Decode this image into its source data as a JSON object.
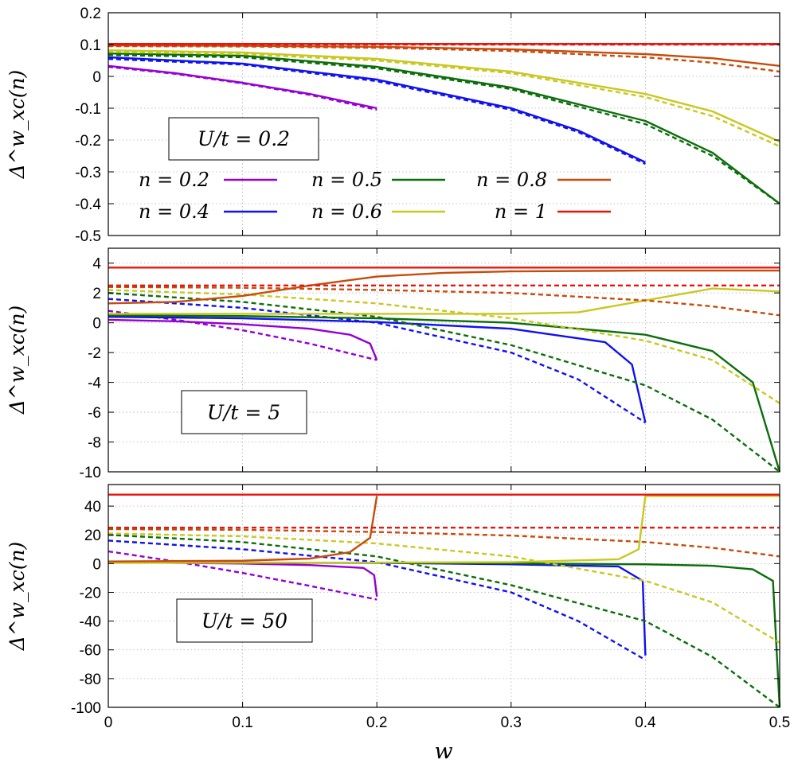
{
  "chart_data": [
    {
      "type": "line",
      "panel": "U/t = 0.2",
      "annotation": "U/t = 0.2",
      "ylabel": "Δ^w_xc(n)",
      "xlabel": "",
      "xlim": [
        0,
        0.5
      ],
      "ylim": [
        -0.5,
        0.2
      ],
      "xticks": [
        "0",
        "0.1",
        "0.2",
        "0.3",
        "0.4",
        "0.5"
      ],
      "yticks": [
        "0.2",
        "0.1",
        "0",
        "-0.1",
        "-0.2",
        "-0.3",
        "-0.4",
        "-0.5"
      ],
      "grid": true,
      "legend_position": "middle-left",
      "series": [
        {
          "name": "n = 0.2",
          "color": "#9400D3",
          "style": "solid",
          "x": [
            0,
            0.05,
            0.1,
            0.15,
            0.2
          ],
          "y": [
            0.033,
            0.01,
            -0.02,
            -0.055,
            -0.1
          ]
        },
        {
          "name": "",
          "color": "#9400D3",
          "style": "dashed",
          "x": [
            0,
            0.05,
            0.1,
            0.15,
            0.2
          ],
          "y": [
            0.03,
            0.008,
            -0.022,
            -0.058,
            -0.105
          ]
        },
        {
          "name": "n = 0.4",
          "color": "#1010F0",
          "style": "solid",
          "x": [
            0,
            0.1,
            0.2,
            0.3,
            0.35,
            0.4
          ],
          "y": [
            0.06,
            0.04,
            -0.01,
            -0.1,
            -0.17,
            -0.27
          ]
        },
        {
          "name": "",
          "color": "#1010F0",
          "style": "dashed",
          "x": [
            0,
            0.1,
            0.2,
            0.3,
            0.35,
            0.4
          ],
          "y": [
            0.055,
            0.037,
            -0.015,
            -0.105,
            -0.175,
            -0.275
          ]
        },
        {
          "name": "n = 0.5",
          "color": "#0B6E0B",
          "style": "solid",
          "x": [
            0,
            0.1,
            0.2,
            0.3,
            0.4,
            0.45,
            0.5
          ],
          "y": [
            0.072,
            0.065,
            0.03,
            -0.035,
            -0.14,
            -0.24,
            -0.4
          ]
        },
        {
          "name": "",
          "color": "#0B6E0B",
          "style": "dashed",
          "x": [
            0,
            0.1,
            0.2,
            0.3,
            0.4,
            0.45,
            0.5
          ],
          "y": [
            0.067,
            0.06,
            0.025,
            -0.04,
            -0.15,
            -0.25,
            -0.4
          ]
        },
        {
          "name": "n = 0.6",
          "color": "#C8C820",
          "style": "solid",
          "x": [
            0,
            0.1,
            0.2,
            0.3,
            0.4,
            0.45,
            0.5
          ],
          "y": [
            0.082,
            0.075,
            0.055,
            0.015,
            -0.055,
            -0.11,
            -0.205
          ]
        },
        {
          "name": "",
          "color": "#C8C820",
          "style": "dashed",
          "x": [
            0,
            0.1,
            0.2,
            0.3,
            0.4,
            0.45,
            0.5
          ],
          "y": [
            0.077,
            0.07,
            0.05,
            0.01,
            -0.065,
            -0.125,
            -0.22
          ]
        },
        {
          "name": "n = 0.8",
          "color": "#C84B0C",
          "style": "solid",
          "x": [
            0,
            0.1,
            0.2,
            0.3,
            0.4,
            0.45,
            0.5
          ],
          "y": [
            0.097,
            0.096,
            0.093,
            0.085,
            0.07,
            0.057,
            0.033
          ]
        },
        {
          "name": "",
          "color": "#C84B0C",
          "style": "dashed",
          "x": [
            0,
            0.1,
            0.2,
            0.3,
            0.4,
            0.45,
            0.5
          ],
          "y": [
            0.095,
            0.094,
            0.09,
            0.08,
            0.06,
            0.043,
            0.015
          ]
        },
        {
          "name": "n = 1",
          "color": "#E8150E",
          "style": "solid",
          "x": [
            0,
            0.5
          ],
          "y": [
            0.102,
            0.102
          ]
        },
        {
          "name": "",
          "color": "#E8150E",
          "style": "dashed",
          "x": [
            0,
            0.5
          ],
          "y": [
            0.1,
            0.1
          ]
        }
      ]
    },
    {
      "type": "line",
      "panel": "U/t = 5",
      "annotation": "U/t = 5",
      "ylabel": "Δ^w_xc(n)",
      "xlabel": "",
      "xlim": [
        0,
        0.5
      ],
      "ylim": [
        -10,
        5
      ],
      "xticks": [
        "0",
        "0.1",
        "0.2",
        "0.3",
        "0.4",
        "0.5"
      ],
      "yticks": [
        "4",
        "2",
        "0",
        "-2",
        "-4",
        "-6",
        "-8",
        "-10"
      ],
      "grid": true,
      "series": [
        {
          "name": "n = 0.2",
          "color": "#9400D3",
          "style": "solid",
          "x": [
            0,
            0.05,
            0.1,
            0.15,
            0.18,
            0.195,
            0.2
          ],
          "y": [
            0.2,
            0.1,
            -0.1,
            -0.4,
            -0.8,
            -1.4,
            -2.5
          ]
        },
        {
          "name": "",
          "color": "#9400D3",
          "style": "dashed",
          "x": [
            0,
            0.05,
            0.1,
            0.15,
            0.2
          ],
          "y": [
            0.8,
            0.2,
            -0.5,
            -1.4,
            -2.5
          ]
        },
        {
          "name": "n = 0.4",
          "color": "#1010F0",
          "style": "solid",
          "x": [
            0,
            0.1,
            0.2,
            0.3,
            0.37,
            0.39,
            0.4
          ],
          "y": [
            0.4,
            0.3,
            0.05,
            -0.4,
            -1.3,
            -2.8,
            -6.7
          ]
        },
        {
          "name": "",
          "color": "#1010F0",
          "style": "dashed",
          "x": [
            0,
            0.1,
            0.2,
            0.3,
            0.35,
            0.4
          ],
          "y": [
            1.6,
            1.0,
            0,
            -2.0,
            -3.8,
            -6.7
          ]
        },
        {
          "name": "n = 0.5",
          "color": "#0B6E0B",
          "style": "solid",
          "x": [
            0,
            0.1,
            0.2,
            0.3,
            0.4,
            0.45,
            0.48,
            0.5
          ],
          "y": [
            0.5,
            0.45,
            0.3,
            0.0,
            -0.8,
            -1.9,
            -4.0,
            -10
          ]
        },
        {
          "name": "",
          "color": "#0B6E0B",
          "style": "dashed",
          "x": [
            0,
            0.1,
            0.2,
            0.3,
            0.4,
            0.45,
            0.5
          ],
          "y": [
            2.0,
            1.4,
            0.4,
            -1.5,
            -4.2,
            -6.5,
            -10
          ]
        },
        {
          "name": "n = 0.6",
          "color": "#C8C820",
          "style": "solid",
          "x": [
            0,
            0.1,
            0.2,
            0.3,
            0.35,
            0.4,
            0.45,
            0.5
          ],
          "y": [
            0.6,
            0.6,
            0.6,
            0.6,
            0.7,
            1.5,
            2.3,
            2.1
          ]
        },
        {
          "name": "",
          "color": "#C8C820",
          "style": "dashed",
          "x": [
            0,
            0.1,
            0.2,
            0.3,
            0.4,
            0.45,
            0.5
          ],
          "y": [
            2.2,
            1.9,
            1.3,
            0.3,
            -1.2,
            -2.5,
            -5.4
          ]
        },
        {
          "name": "n = 0.8",
          "color": "#C84B0C",
          "style": "solid",
          "x": [
            0,
            0.05,
            0.1,
            0.15,
            0.2,
            0.25,
            0.3,
            0.4,
            0.5
          ],
          "y": [
            1.3,
            1.4,
            1.8,
            2.5,
            3.1,
            3.35,
            3.45,
            3.5,
            3.5
          ]
        },
        {
          "name": "",
          "color": "#C84B0C",
          "style": "dashed",
          "x": [
            0,
            0.1,
            0.2,
            0.3,
            0.4,
            0.45,
            0.5
          ],
          "y": [
            2.4,
            2.35,
            2.2,
            2.0,
            1.5,
            1.1,
            0.5
          ]
        },
        {
          "name": "n = 1",
          "color": "#E8150E",
          "style": "solid",
          "x": [
            0,
            0.5
          ],
          "y": [
            3.7,
            3.7
          ]
        },
        {
          "name": "",
          "color": "#E8150E",
          "style": "dashed",
          "x": [
            0,
            0.5
          ],
          "y": [
            2.5,
            2.5
          ]
        }
      ]
    },
    {
      "type": "line",
      "panel": "U/t = 50",
      "annotation": "U/t = 50",
      "ylabel": "Δ^w_xc(n)",
      "xlabel": "w",
      "xlim": [
        0,
        0.5
      ],
      "ylim": [
        -100,
        55
      ],
      "xticks": [
        "0",
        "0.1",
        "0.2",
        "0.3",
        "0.4",
        "0.5"
      ],
      "yticks": [
        "40",
        "20",
        "0",
        "-20",
        "-40",
        "-60",
        "-80",
        "-100"
      ],
      "grid": true,
      "series": [
        {
          "name": "n = 0.2",
          "color": "#9400D3",
          "style": "solid",
          "x": [
            0,
            0.1,
            0.15,
            0.19,
            0.198,
            0.2
          ],
          "y": [
            1.0,
            0.0,
            -1.0,
            -3.0,
            -8.0,
            -23
          ]
        },
        {
          "name": "",
          "color": "#9400D3",
          "style": "dashed",
          "x": [
            0,
            0.05,
            0.1,
            0.15,
            0.2
          ],
          "y": [
            8.5,
            1.5,
            -6.5,
            -15.5,
            -25
          ]
        },
        {
          "name": "n = 0.4",
          "color": "#1010F0",
          "style": "solid",
          "x": [
            0,
            0.2,
            0.3,
            0.38,
            0.398,
            0.4
          ],
          "y": [
            0.8,
            0.5,
            -0.5,
            -2.0,
            -12,
            -64
          ]
        },
        {
          "name": "",
          "color": "#1010F0",
          "style": "dashed",
          "x": [
            0,
            0.1,
            0.2,
            0.3,
            0.35,
            0.4
          ],
          "y": [
            16,
            10,
            1,
            -20,
            -40,
            -67
          ]
        },
        {
          "name": "n = 0.5",
          "color": "#0B6E0B",
          "style": "solid",
          "x": [
            0,
            0.2,
            0.3,
            0.4,
            0.45,
            0.48,
            0.495,
            0.5
          ],
          "y": [
            0.8,
            0.6,
            0.2,
            -0.5,
            -1.5,
            -4.0,
            -12,
            -100
          ]
        },
        {
          "name": "",
          "color": "#0B6E0B",
          "style": "dashed",
          "x": [
            0,
            0.1,
            0.2,
            0.3,
            0.4,
            0.45,
            0.5
          ],
          "y": [
            20,
            15,
            5,
            -15,
            -40,
            -65,
            -100
          ]
        },
        {
          "name": "n = 0.6",
          "color": "#C8C820",
          "style": "solid",
          "x": [
            0,
            0.2,
            0.3,
            0.38,
            0.395,
            0.4,
            0.5
          ],
          "y": [
            0.5,
            0.7,
            1.0,
            3.0,
            10,
            47,
            47
          ]
        },
        {
          "name": "",
          "color": "#C8C820",
          "style": "dashed",
          "x": [
            0,
            0.1,
            0.2,
            0.3,
            0.4,
            0.45,
            0.5
          ],
          "y": [
            21,
            19,
            14,
            5,
            -12,
            -27,
            -55
          ]
        },
        {
          "name": "n = 0.8",
          "color": "#C84B0C",
          "style": "solid",
          "x": [
            0,
            0.1,
            0.15,
            0.18,
            0.195,
            0.2
          ],
          "y": [
            1.5,
            2.0,
            3.5,
            8.0,
            18,
            47
          ]
        },
        {
          "name": "",
          "color": "#C84B0C",
          "style": "dashed",
          "x": [
            0,
            0.1,
            0.2,
            0.3,
            0.4,
            0.45,
            0.5
          ],
          "y": [
            24,
            23.5,
            22,
            19.5,
            15,
            11,
            5
          ]
        },
        {
          "name": "n = 1",
          "color": "#E8150E",
          "style": "solid",
          "x": [
            0,
            0.5
          ],
          "y": [
            48,
            48
          ]
        },
        {
          "name": "",
          "color": "#E8150E",
          "style": "dashed",
          "x": [
            0,
            0.5
          ],
          "y": [
            25,
            25
          ]
        }
      ]
    }
  ]
}
